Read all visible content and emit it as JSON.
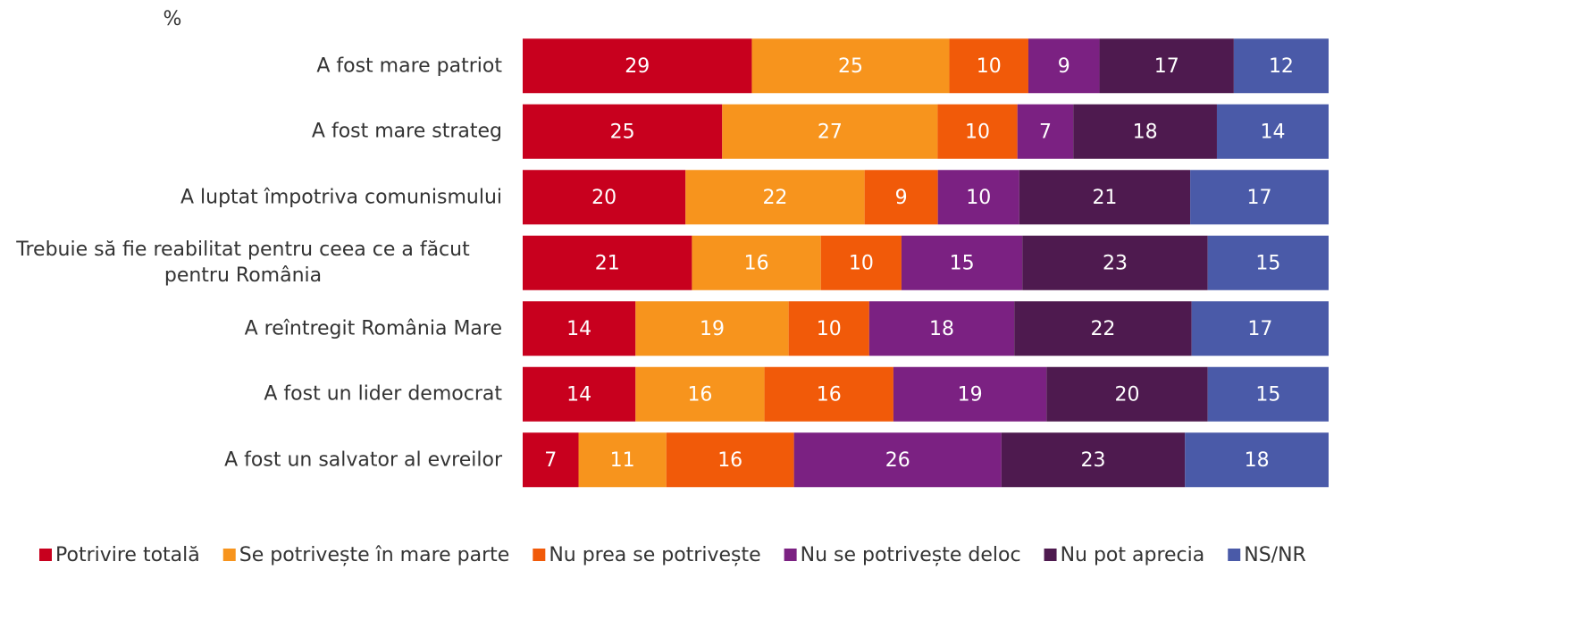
{
  "chart_data": {
    "type": "bar",
    "orientation": "horizontal",
    "stacked": "percent",
    "title": "%",
    "categories": [
      "A fost mare patriot",
      "A fost mare strateg",
      "A luptat împotriva comunismului",
      "Trebuie să fie reabilitat pentru ceea ce a făcut\npentru România",
      "A reîntregit România Mare",
      "A fost un lider democrat",
      "A fost un salvator al evreilor"
    ],
    "series": [
      {
        "name": "Potrivire totală",
        "color": "#c8001e",
        "values": [
          29,
          25,
          20,
          21,
          14,
          14,
          7
        ]
      },
      {
        "name": "Se potrivește în mare parte",
        "color": "#f7941d",
        "values": [
          25,
          27,
          22,
          16,
          19,
          16,
          11
        ]
      },
      {
        "name": "Nu prea se potrivește",
        "color": "#f15a09",
        "values": [
          10,
          10,
          9,
          10,
          10,
          16,
          16
        ]
      },
      {
        "name": "Nu se potrivește deloc",
        "color": "#7b2182",
        "values": [
          9,
          7,
          10,
          15,
          18,
          19,
          26
        ]
      },
      {
        "name": "Nu pot aprecia",
        "color": "#4e1a4f",
        "values": [
          17,
          18,
          21,
          23,
          22,
          20,
          23
        ]
      },
      {
        "name": "NS/NR",
        "color": "#4a5aa8",
        "values": [
          12,
          14,
          17,
          15,
          17,
          15,
          18
        ]
      }
    ],
    "legend": "bottom"
  }
}
